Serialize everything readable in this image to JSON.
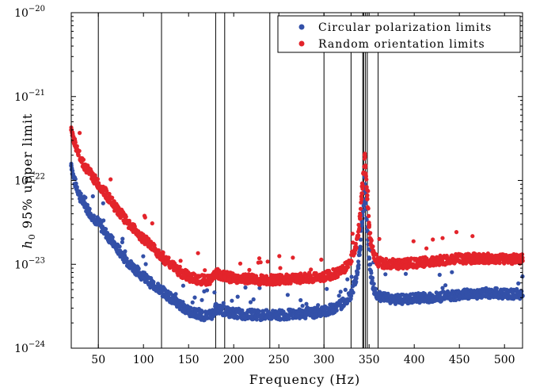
{
  "chart_data": {
    "type": "scatter",
    "title": "",
    "xlabel": "Frequency (Hz)",
    "ylabel_prefix": "h",
    "ylabel_subscript": "0",
    "ylabel_suffix": " 95% upper limit",
    "xlim": [
      20,
      520
    ],
    "ylim": [
      1e-24,
      1e-20
    ],
    "yscale": "log",
    "grid": false,
    "legend_position": "top-right",
    "x_ticks": [
      50,
      100,
      150,
      200,
      250,
      300,
      350,
      400,
      450,
      500
    ],
    "x_tick_labels": [
      "50",
      "100",
      "150",
      "200",
      "250",
      "300",
      "350",
      "400",
      "450",
      "500"
    ],
    "y_ticks": [
      {
        "value": 1e-20,
        "base": "10",
        "exp": "−20"
      },
      {
        "value": 1e-21,
        "base": "10",
        "exp": "−21"
      },
      {
        "value": 1e-22,
        "base": "10",
        "exp": "−22"
      },
      {
        "value": 1e-23,
        "base": "10",
        "exp": "−23"
      },
      {
        "value": 1e-24,
        "base": "10",
        "exp": "−24"
      }
    ],
    "vertical_lines_hz": [
      50,
      120,
      180,
      190,
      240,
      300,
      330,
      343,
      344,
      346,
      348,
      360
    ],
    "series": [
      {
        "name": "Circular polarization limits",
        "color": "#3350a8",
        "x": [
          20,
          22,
          24,
          26,
          28,
          30,
          35,
          40,
          45,
          50,
          55,
          60,
          65,
          70,
          75,
          80,
          85,
          90,
          95,
          100,
          105,
          110,
          115,
          120,
          125,
          130,
          135,
          140,
          145,
          150,
          155,
          160,
          165,
          170,
          175,
          180,
          185,
          190,
          195,
          200,
          210,
          220,
          230,
          240,
          250,
          260,
          270,
          280,
          290,
          300,
          310,
          320,
          325,
          330,
          335,
          338,
          340,
          342,
          344,
          345,
          346,
          348,
          350,
          352,
          355,
          358,
          360,
          370,
          380,
          390,
          400,
          410,
          420,
          430,
          440,
          450,
          460,
          470,
          480,
          490,
          500,
          510,
          520
        ],
        "y": [
          1.5e-22,
          1.1e-22,
          9e-23,
          8e-23,
          7e-23,
          6e-23,
          4.8e-23,
          4e-23,
          3.4e-23,
          3e-23,
          2.5e-23,
          2.1e-23,
          1.8e-23,
          1.5e-23,
          1.3e-23,
          1.1e-23,
          9.5e-24,
          8.5e-24,
          7.5e-24,
          6.8e-24,
          6e-24,
          5.5e-24,
          5e-24,
          4.6e-24,
          4.2e-24,
          3.8e-24,
          3.4e-24,
          3.1e-24,
          2.9e-24,
          2.6e-24,
          2.5e-24,
          2.4e-24,
          2.35e-24,
          2.3e-24,
          2.35e-24,
          2.8e-24,
          2.7e-24,
          2.6e-24,
          2.5e-24,
          2.5e-24,
          2.4e-24,
          2.4e-24,
          2.35e-24,
          2.35e-24,
          2.35e-24,
          2.4e-24,
          2.4e-24,
          2.45e-24,
          2.5e-24,
          2.6e-24,
          2.8e-24,
          3.2e-24,
          3.6e-24,
          4.2e-24,
          6e-24,
          9e-24,
          1.5e-23,
          3e-23,
          5e-23,
          1.1e-22,
          6e-23,
          2.5e-23,
          1.2e-23,
          7e-24,
          5e-24,
          4.2e-24,
          3.9e-24,
          3.7e-24,
          3.6e-24,
          3.6e-24,
          3.7e-24,
          3.8e-24,
          3.8e-24,
          3.9e-24,
          4e-24,
          4.1e-24,
          4.2e-24,
          4.2e-24,
          4.3e-24,
          4.3e-24,
          4.2e-24,
          4.2e-24,
          4.2e-24
        ]
      },
      {
        "name": "Random orientation limits",
        "color": "#e3242b",
        "x": [
          20,
          22,
          24,
          26,
          28,
          30,
          35,
          40,
          45,
          50,
          55,
          60,
          65,
          70,
          75,
          80,
          85,
          90,
          95,
          100,
          105,
          110,
          115,
          120,
          125,
          130,
          135,
          140,
          145,
          150,
          155,
          160,
          165,
          170,
          175,
          180,
          185,
          190,
          195,
          200,
          210,
          220,
          230,
          240,
          250,
          260,
          270,
          280,
          290,
          300,
          310,
          320,
          325,
          330,
          335,
          338,
          340,
          342,
          344,
          345,
          346,
          348,
          350,
          352,
          355,
          358,
          360,
          370,
          380,
          390,
          400,
          410,
          420,
          430,
          440,
          450,
          460,
          470,
          480,
          490,
          500,
          510,
          520
        ],
        "y": [
          4e-22,
          3e-22,
          2.6e-22,
          2.3e-22,
          2e-22,
          1.8e-22,
          1.4e-22,
          1.2e-22,
          1e-22,
          8.5e-23,
          7.5e-23,
          6.2e-23,
          5.2e-23,
          4.4e-23,
          3.8e-23,
          3.2e-23,
          2.8e-23,
          2.5e-23,
          2.2e-23,
          1.9e-23,
          1.7e-23,
          1.5e-23,
          1.35e-23,
          1.2e-23,
          1.05e-23,
          9.5e-24,
          8.5e-24,
          7.8e-24,
          7.2e-24,
          6.8e-24,
          6.5e-24,
          6.3e-24,
          6.2e-24,
          6.1e-24,
          6.3e-24,
          7.5e-24,
          7.2e-24,
          6.9e-24,
          6.6e-24,
          6.5e-24,
          6.3e-24,
          6.3e-24,
          6.2e-24,
          6.2e-24,
          6.2e-24,
          6.3e-24,
          6.4e-24,
          6.5e-24,
          6.6e-24,
          6.8e-24,
          7.2e-24,
          8e-24,
          9e-24,
          1.1e-23,
          1.5e-23,
          2.2e-23,
          3.5e-23,
          7e-23,
          1.2e-22,
          2e-22,
          1.5e-22,
          6e-23,
          2.8e-23,
          1.7e-23,
          1.3e-23,
          1.1e-23,
          1e-23,
          9.6e-24,
          9.5e-24,
          9.6e-24,
          9.8e-24,
          1e-23,
          1.02e-23,
          1.05e-23,
          1.08e-23,
          1.1e-23,
          1.1e-23,
          1.12e-23,
          1.12e-23,
          1.1e-23,
          1.1e-23,
          1.1e-23,
          1.1e-23
        ]
      }
    ]
  }
}
